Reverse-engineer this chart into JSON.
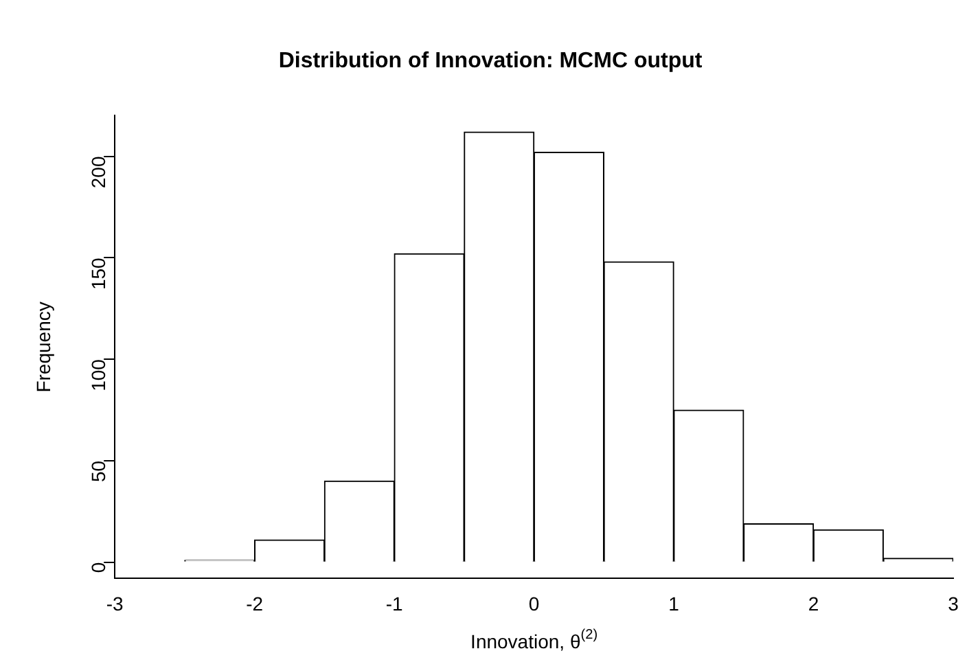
{
  "chart_data": {
    "type": "histogram",
    "title": "Distribution of Innovation: MCMC output",
    "xlabel": "Innovation, θ$^{(2)}$",
    "ylabel": "Frequency",
    "bins": [
      -2.5,
      -2,
      -1.5,
      -1,
      -0.5,
      0,
      0.5,
      1,
      1.5,
      2,
      2.5,
      3
    ],
    "values": [
      1,
      11,
      40,
      152,
      212,
      202,
      148,
      75,
      19,
      16,
      2
    ],
    "color": "#ffffff",
    "xlim": [
      -3,
      3
    ],
    "xticks": [
      -3,
      -2,
      -1,
      0,
      1,
      2,
      3
    ],
    "ylim": [
      -8,
      220
    ],
    "yticks": [
      0,
      50,
      100,
      150,
      200
    ],
    "grid": false,
    "legend": false
  }
}
